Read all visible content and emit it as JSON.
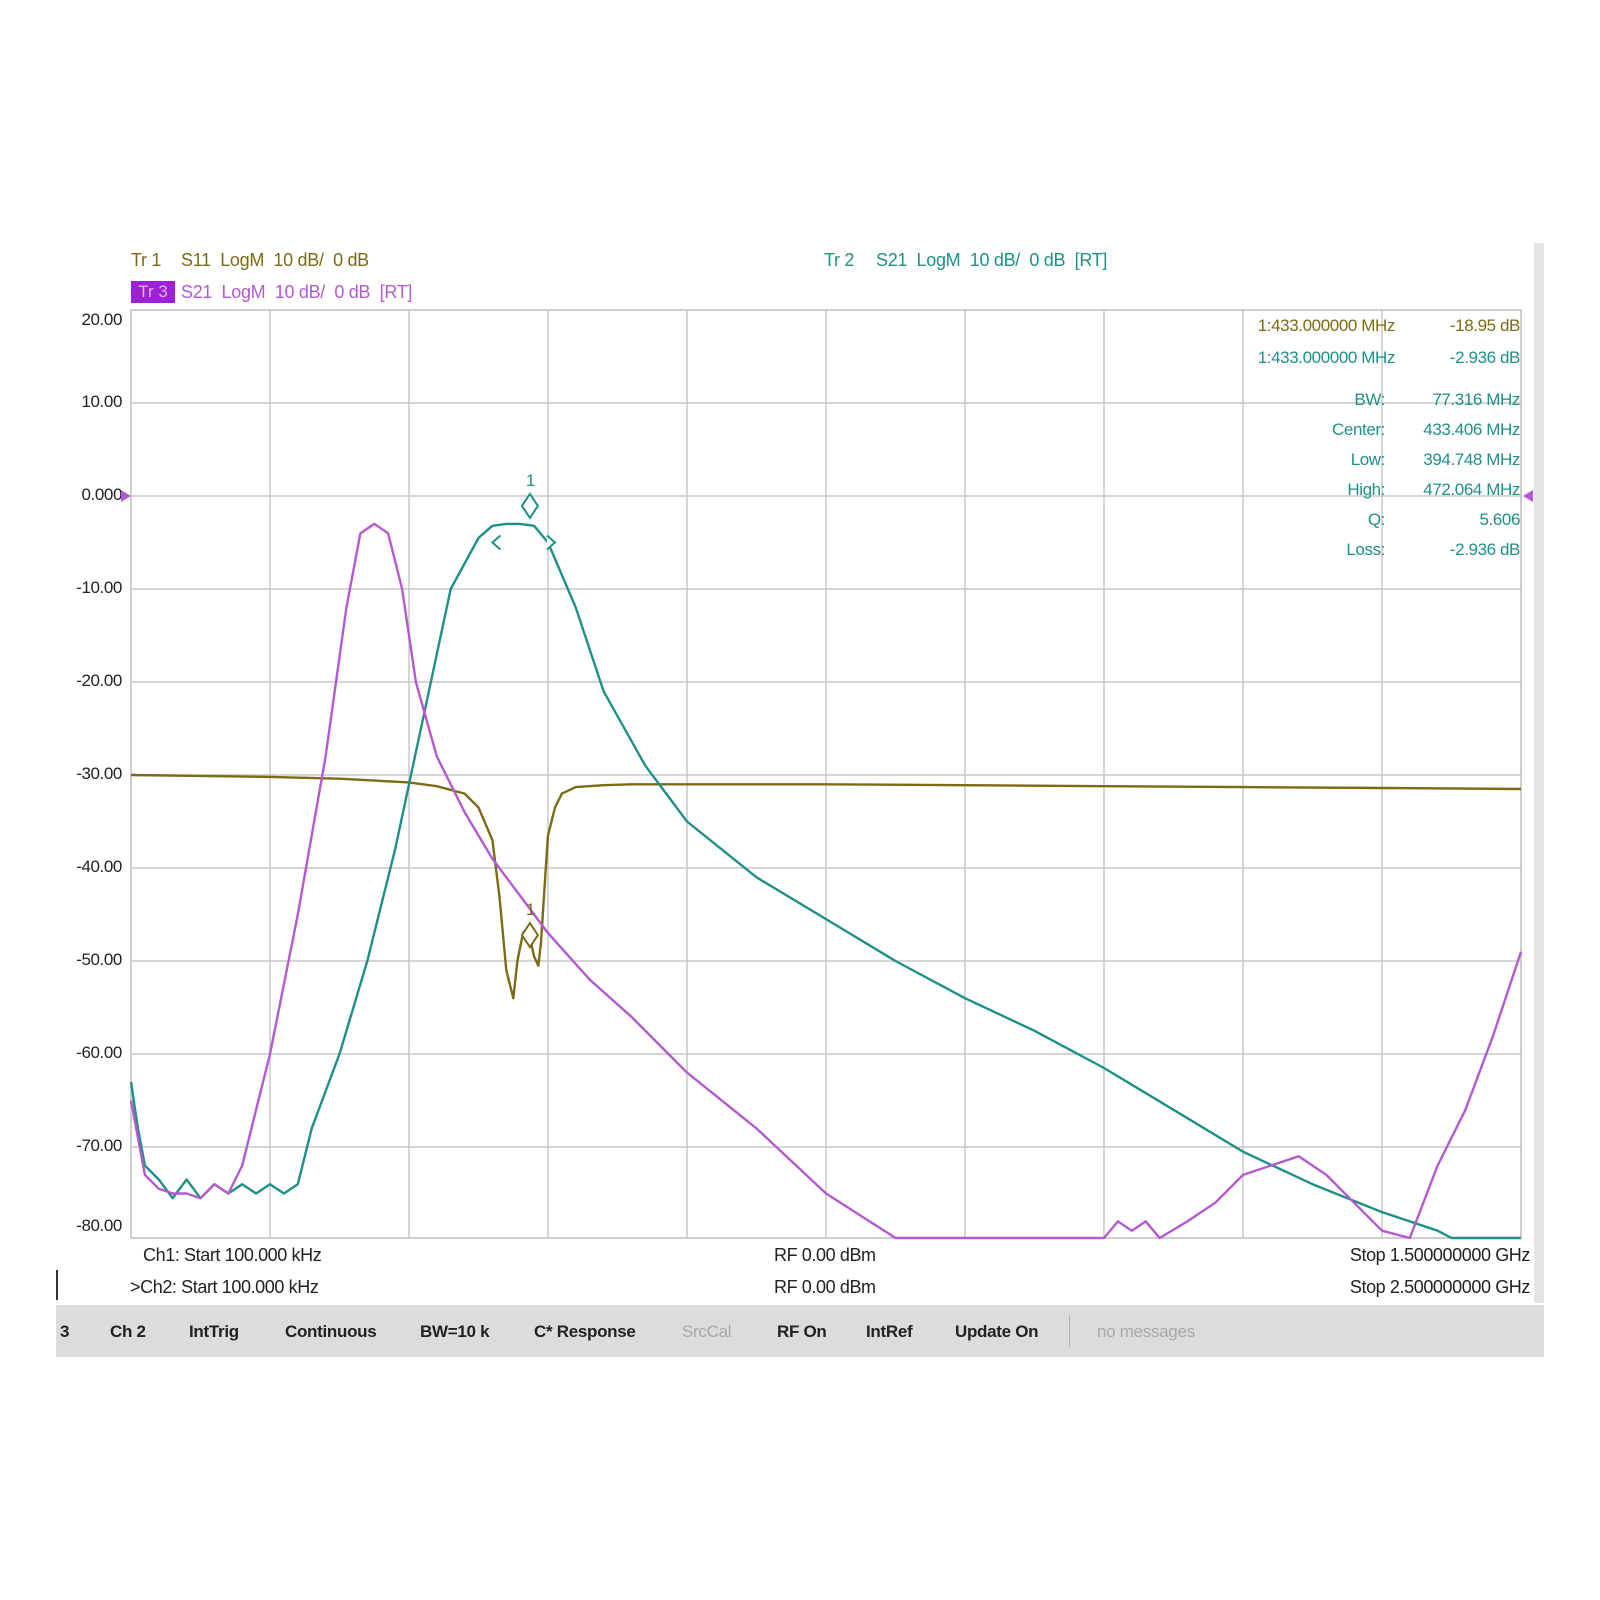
{
  "header": {
    "tr1_name": "Tr 1",
    "tr1_desc": "S11  LogM  10 dB/  0 dB",
    "tr2_name": "Tr 2",
    "tr2_desc": "S21  LogM  10 dB/  0 dB  [RT]",
    "tr3_name": "Tr 3",
    "tr3_desc": "S21  LogM  10 dB/  0 dB  [RT]"
  },
  "colors": {
    "tr1": "#7d6a16",
    "tr2": "#1e9088",
    "tr3": "#b45ad0",
    "grid": "#c8c8c8"
  },
  "marker_readout": {
    "m1_tr1_freq": "1:433.000000 MHz",
    "m1_tr1_value": "-18.95 dB",
    "m1_tr2_freq": "1:433.000000 MHz",
    "m1_tr2_value": "-2.936 dB",
    "bw_label": "BW:",
    "bw_value": "77.316 MHz",
    "center_label": "Center:",
    "center_value": "433.406 MHz",
    "low_label": "Low:",
    "low_value": "394.748 MHz",
    "high_label": "High:",
    "high_value": "472.064 MHz",
    "q_label": "Q:",
    "q_value": "5.606",
    "loss_label": "Loss:",
    "loss_value": "-2.936 dB",
    "marker_number": "1"
  },
  "footer": {
    "ch1_start": "Ch1: Start 100.000 kHz",
    "ch1_rf": "RF 0.00 dBm",
    "ch1_stop": "Stop 1.500000000 GHz",
    "ch2_start": ">Ch2: Start 100.000 kHz",
    "ch2_rf": "RF 0.00 dBm",
    "ch2_stop": "Stop 2.500000000 GHz"
  },
  "status_bar": {
    "items": [
      "3",
      "Ch 2",
      "IntTrig",
      "Continuous",
      "BW=10 k",
      "C* Response",
      "SrcCal",
      "RF On",
      "IntRef",
      "Update On",
      "no messages"
    ]
  },
  "chart_data": {
    "type": "line",
    "ylim": [
      -80,
      20
    ],
    "y_ticks": [
      "20.00",
      "10.00",
      "0.000",
      "-10.00",
      "-20.00",
      "-30.00",
      "-40.00",
      "-50.00",
      "-60.00",
      "-70.00",
      "-80.00"
    ],
    "x_divisions": 10,
    "grid": true,
    "series": [
      {
        "name": "Tr 1",
        "color": "#7d6a16",
        "x": [
          0,
          0.5,
          1,
          1.5,
          2,
          2.2,
          2.4,
          2.5,
          2.6,
          2.65,
          2.7,
          2.75,
          2.78,
          2.82,
          2.85,
          2.87,
          2.9,
          2.93,
          2.95,
          2.98,
          3.0,
          3.05,
          3.1,
          3.2,
          3.4,
          3.6,
          4,
          5,
          6,
          7,
          8,
          9,
          10
        ],
        "y": [
          -30.0,
          -30.1,
          -30.2,
          -30.4,
          -30.8,
          -31.2,
          -32.0,
          -33.5,
          -37.0,
          -43.0,
          -51.0,
          -54.0,
          -50.0,
          -47.0,
          -46.5,
          -47.5,
          -49.5,
          -50.5,
          -48.0,
          -41.0,
          -36.5,
          -33.5,
          -32.0,
          -31.3,
          -31.1,
          -31.0,
          -31.0,
          -31.0,
          -31.1,
          -31.2,
          -31.3,
          -31.4,
          -31.5
        ]
      },
      {
        "name": "Tr 2",
        "color": "#1e9088",
        "x": [
          0,
          0.05,
          0.1,
          0.2,
          0.3,
          0.4,
          0.5,
          0.6,
          0.7,
          0.8,
          0.9,
          1.0,
          1.1,
          1.2,
          1.3,
          1.5,
          1.7,
          1.9,
          2.1,
          2.3,
          2.5,
          2.6,
          2.7,
          2.8,
          2.9,
          3.0,
          3.2,
          3.4,
          3.7,
          4.0,
          4.5,
          5.0,
          5.5,
          6.0,
          6.5,
          7.0,
          7.5,
          8.0,
          8.5,
          9.0,
          9.2,
          9.4,
          9.5,
          9.6,
          9.8,
          10
        ],
        "y": [
          -63,
          -68,
          -72,
          -73.5,
          -75.5,
          -73.5,
          -75.5,
          -74,
          -75,
          -74,
          -75,
          -74,
          -75,
          -74,
          -68,
          -60,
          -50,
          -38,
          -24,
          -10,
          -4.5,
          -3.2,
          -3.0,
          -3.0,
          -3.2,
          -5,
          -12,
          -21,
          -29,
          -35,
          -41,
          -45.5,
          -50,
          -54,
          -57.5,
          -61.5,
          -66,
          -70.5,
          -74,
          -77,
          -78,
          -79,
          -80,
          -80,
          -80,
          -80
        ]
      },
      {
        "name": "Tr 3",
        "color": "#b45ad0",
        "x": [
          0,
          0.1,
          0.2,
          0.3,
          0.4,
          0.5,
          0.6,
          0.7,
          0.8,
          1.0,
          1.2,
          1.4,
          1.55,
          1.65,
          1.75,
          1.85,
          1.95,
          2.05,
          2.2,
          2.4,
          2.6,
          2.8,
          3.0,
          3.3,
          3.6,
          4.0,
          4.5,
          5.0,
          5.5,
          6.0,
          6.5,
          7.0,
          7.1,
          7.2,
          7.3,
          7.4,
          7.6,
          7.8,
          8.0,
          8.2,
          8.4,
          8.6,
          8.8,
          9.0,
          9.2,
          9.4,
          9.6,
          9.8,
          10
        ],
        "y": [
          -65,
          -73,
          -74.5,
          -75,
          -75,
          -75.5,
          -74,
          -75,
          -72,
          -60,
          -45,
          -28,
          -12,
          -4,
          -3,
          -4,
          -10,
          -20,
          -28,
          -34,
          -39,
          -43,
          -47,
          -52,
          -56,
          -62,
          -68,
          -75,
          -80,
          -80,
          -80,
          -80,
          -78,
          -79,
          -78,
          -80,
          -78,
          -76,
          -73,
          -72,
          -71,
          -73,
          -76,
          -79,
          -80,
          -72,
          -66,
          -58,
          -49
        ]
      }
    ]
  }
}
